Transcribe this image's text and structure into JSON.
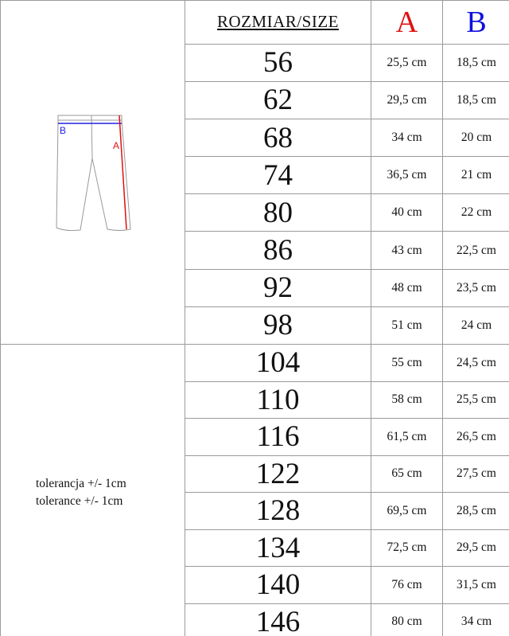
{
  "header": {
    "size": "ROZMIAR/SIZE",
    "a": "A",
    "b": "B"
  },
  "diagram": {
    "label_a": "A",
    "label_b": "B",
    "color_a": "#e01010",
    "color_b": "#2020e0"
  },
  "tolerance": [
    "tolerancja +/- 1cm",
    "tolerance +/- 1cm"
  ],
  "rows": [
    {
      "size": "56",
      "a": "25,5 cm",
      "b": "18,5 cm"
    },
    {
      "size": "62",
      "a": "29,5 cm",
      "b": "18,5 cm"
    },
    {
      "size": "68",
      "a": "34 cm",
      "b": "20 cm"
    },
    {
      "size": "74",
      "a": "36,5 cm",
      "b": "21 cm"
    },
    {
      "size": "80",
      "a": "40 cm",
      "b": "22 cm"
    },
    {
      "size": "86",
      "a": "43 cm",
      "b": "22,5 cm"
    },
    {
      "size": "92",
      "a": "48 cm",
      "b": "23,5 cm"
    },
    {
      "size": "98",
      "a": "51 cm",
      "b": "24 cm"
    },
    {
      "size": "104",
      "a": "55 cm",
      "b": "24,5 cm"
    },
    {
      "size": "110",
      "a": "58 cm",
      "b": "25,5 cm"
    },
    {
      "size": "116",
      "a": "61,5 cm",
      "b": "26,5 cm"
    },
    {
      "size": "122",
      "a": "65 cm",
      "b": "27,5 cm"
    },
    {
      "size": "128",
      "a": "69,5 cm",
      "b": "28,5 cm"
    },
    {
      "size": "134",
      "a": "72,5 cm",
      "b": "29,5 cm"
    },
    {
      "size": "140",
      "a": "76 cm",
      "b": "31,5 cm"
    },
    {
      "size": "146",
      "a": "80 cm",
      "b": "34 cm"
    }
  ]
}
